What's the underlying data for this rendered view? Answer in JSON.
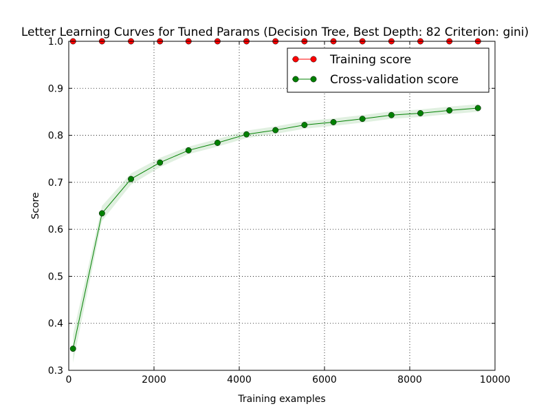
{
  "chart_data": {
    "type": "line",
    "title": "Letter Learning Curves for Tuned Params (Decision Tree, Best Depth: 82 Criterion: gini)",
    "xlabel": "Training examples",
    "ylabel": "Score",
    "xlim": [
      0,
      10000
    ],
    "ylim": [
      0.3,
      1.0
    ],
    "xticks": [
      0,
      2000,
      4000,
      6000,
      8000,
      10000
    ],
    "yticks": [
      0.3,
      0.4,
      0.5,
      0.6,
      0.7,
      0.8,
      0.9,
      1.0
    ],
    "grid": true,
    "legend_position": "top-right",
    "x": [
      100,
      780,
      1460,
      2140,
      2810,
      3490,
      4170,
      4850,
      5530,
      6210,
      6890,
      7570,
      8250,
      8930,
      9600
    ],
    "series": [
      {
        "name": "Training score",
        "color": "#ff0000",
        "values": [
          1.0,
          1.0,
          1.0,
          1.0,
          1.0,
          1.0,
          1.0,
          1.0,
          1.0,
          1.0,
          1.0,
          1.0,
          1.0,
          1.0,
          1.0
        ],
        "band": 0.0
      },
      {
        "name": "Cross-validation score",
        "color": "#008000",
        "values": [
          0.346,
          0.634,
          0.707,
          0.742,
          0.768,
          0.784,
          0.802,
          0.811,
          0.822,
          0.828,
          0.835,
          0.843,
          0.847,
          0.853,
          0.858
        ],
        "band": [
          0.03,
          0.016,
          0.012,
          0.01,
          0.008,
          0.008,
          0.008,
          0.008,
          0.008,
          0.008,
          0.008,
          0.008,
          0.008,
          0.008,
          0.008
        ]
      }
    ]
  }
}
